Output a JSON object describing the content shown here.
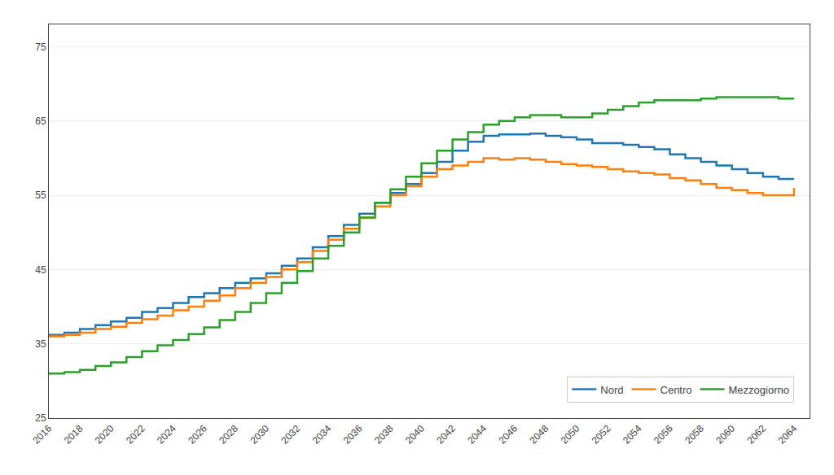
{
  "chart_data": {
    "type": "line",
    "x": [
      2016,
      2017,
      2018,
      2019,
      2020,
      2021,
      2022,
      2023,
      2024,
      2025,
      2026,
      2027,
      2028,
      2029,
      2030,
      2031,
      2032,
      2033,
      2034,
      2035,
      2036,
      2037,
      2038,
      2039,
      2040,
      2041,
      2042,
      2043,
      2044,
      2045,
      2046,
      2047,
      2048,
      2049,
      2050,
      2051,
      2052,
      2053,
      2054,
      2055,
      2056,
      2057,
      2058,
      2059,
      2060,
      2061,
      2062,
      2063,
      2064
    ],
    "series": [
      {
        "name": "Nord",
        "values": [
          36.2,
          36.5,
          37.0,
          37.5,
          38.0,
          38.5,
          39.3,
          39.8,
          40.5,
          41.3,
          41.8,
          42.5,
          43.2,
          43.8,
          44.5,
          45.5,
          46.5,
          48.0,
          49.5,
          51.0,
          52.5,
          54.0,
          55.3,
          56.5,
          58.0,
          59.5,
          61.0,
          62.2,
          63.0,
          63.2,
          63.2,
          63.3,
          63.0,
          62.8,
          62.5,
          62.0,
          62.0,
          61.8,
          61.5,
          61.2,
          60.5,
          60.0,
          59.5,
          59.0,
          58.5,
          58.0,
          57.5,
          57.2,
          57.2
        ]
      },
      {
        "name": "Centro",
        "values": [
          36.0,
          36.2,
          36.5,
          37.0,
          37.3,
          37.8,
          38.3,
          38.8,
          39.5,
          40.0,
          40.8,
          41.5,
          42.5,
          43.2,
          44.0,
          45.0,
          46.0,
          47.5,
          49.0,
          50.5,
          52.0,
          53.5,
          55.0,
          56.2,
          57.5,
          58.5,
          59.0,
          59.5,
          60.0,
          59.8,
          60.0,
          59.8,
          59.5,
          59.2,
          59.0,
          58.8,
          58.5,
          58.2,
          58.0,
          57.8,
          57.3,
          57.0,
          56.5,
          56.0,
          55.7,
          55.3,
          55.0,
          55.0,
          56.0
        ]
      },
      {
        "name": "Mezzogiorno",
        "values": [
          31.0,
          31.2,
          31.5,
          32.0,
          32.5,
          33.2,
          34.0,
          34.8,
          35.5,
          36.3,
          37.2,
          38.2,
          39.3,
          40.5,
          41.8,
          43.2,
          44.8,
          46.5,
          48.2,
          50.0,
          52.0,
          54.0,
          55.8,
          57.5,
          59.3,
          61.0,
          62.5,
          63.5,
          64.5,
          65.0,
          65.5,
          65.8,
          65.8,
          65.5,
          65.5,
          66.0,
          66.5,
          67.0,
          67.5,
          67.8,
          67.8,
          67.8,
          68.0,
          68.2,
          68.2,
          68.2,
          68.2,
          68.0,
          68.0
        ]
      }
    ],
    "xlim": [
      2016,
      2065
    ],
    "xticks": [
      2016,
      2018,
      2020,
      2022,
      2024,
      2026,
      2028,
      2030,
      2032,
      2034,
      2036,
      2038,
      2040,
      2042,
      2044,
      2046,
      2048,
      2050,
      2052,
      2054,
      2056,
      2058,
      2060,
      2062,
      2064
    ],
    "ylim": [
      25,
      78
    ],
    "yticks": [
      25,
      35,
      45,
      55,
      65,
      75
    ],
    "grid": true,
    "legend": "lower right"
  }
}
